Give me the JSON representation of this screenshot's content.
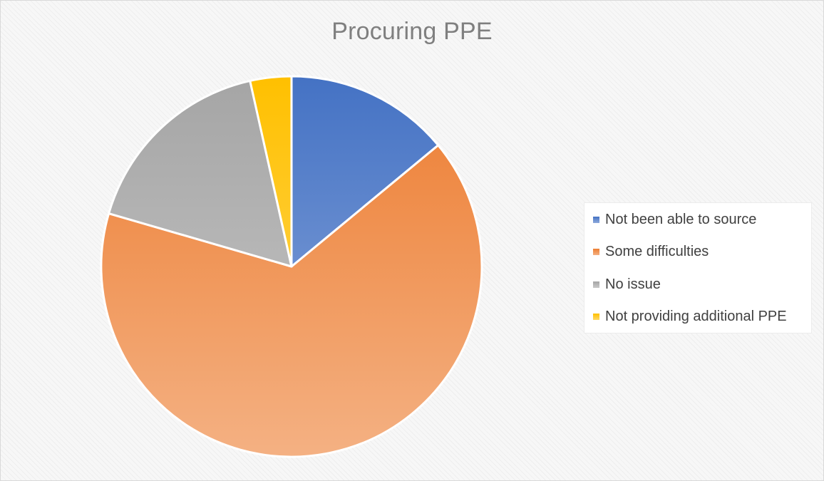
{
  "chart_data": {
    "type": "pie",
    "title": "Procuring PPE",
    "categories": [
      "Not been able to source",
      "Some difficulties",
      "No issue",
      "Not providing additional PPE"
    ],
    "values": [
      14.0,
      65.5,
      17.0,
      3.5
    ],
    "colors": [
      "#4472c4",
      "#ed7d31",
      "#a5a5a5",
      "#ffc000"
    ],
    "colors_light": [
      "#8faadc",
      "#f4b183",
      "#c9c9c9",
      "#ffd966"
    ],
    "legend_position": "right",
    "start_angle": "12 o'clock",
    "direction": "clockwise"
  }
}
